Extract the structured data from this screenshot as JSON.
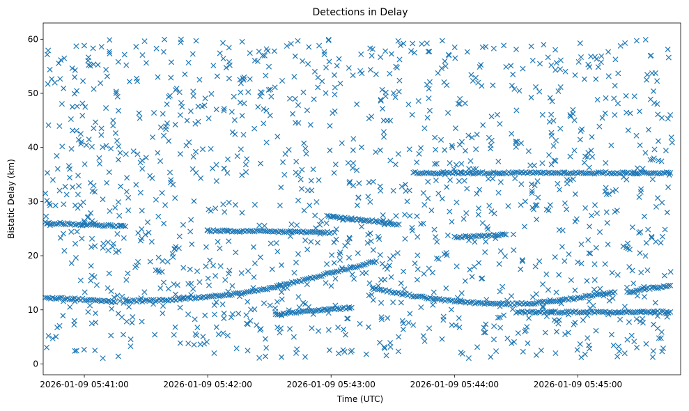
{
  "chart_data": {
    "type": "scatter",
    "title": "Detections in Delay",
    "xlabel": "Time (UTC)",
    "ylabel": "Bistatic Delay (km)",
    "x_ticks": [
      "2026-01-09 05:41:00",
      "2026-01-09 05:42:00",
      "2026-01-09 05:43:00",
      "2026-01-09 05:44:00",
      "2026-01-09 05:45:00"
    ],
    "y_ticks": [
      "0",
      "10",
      "20",
      "30",
      "40",
      "50",
      "60"
    ],
    "x_range": [
      "2026-01-09 05:40:40",
      "2026-01-09 05:45:50"
    ],
    "y_range": [
      -2,
      63
    ],
    "grid": false,
    "marker": "x",
    "color": "#1f77b4",
    "tracks": [
      {
        "points": [
          [
            "05:40:41",
            12.3
          ],
          [
            "05:40:50",
            12.1
          ],
          [
            "05:41:00",
            11.9
          ],
          [
            "05:41:10",
            11.6
          ],
          [
            "05:41:15",
            11.4
          ]
        ]
      },
      {
        "points": [
          [
            "05:41:20",
            11.6
          ],
          [
            "05:41:30",
            11.7
          ],
          [
            "05:41:40",
            11.8
          ],
          [
            "05:41:50",
            12.1
          ],
          [
            "05:42:00",
            12.4
          ],
          [
            "05:42:10",
            12.8
          ],
          [
            "05:42:20",
            13.2
          ],
          [
            "05:42:30",
            14.0
          ],
          [
            "05:42:40",
            14.9
          ],
          [
            "05:42:50",
            15.8
          ],
          [
            "05:43:00",
            16.9
          ],
          [
            "05:43:10",
            17.8
          ],
          [
            "05:43:22",
            19.0
          ]
        ]
      },
      {
        "points": [
          [
            "05:43:20",
            14.0
          ],
          [
            "05:43:30",
            13.3
          ],
          [
            "05:43:40",
            12.6
          ],
          [
            "05:43:50",
            12.0
          ],
          [
            "05:44:00",
            11.6
          ],
          [
            "05:44:10",
            11.3
          ],
          [
            "05:44:20",
            11.1
          ],
          [
            "05:44:30",
            11.1
          ],
          [
            "05:44:40",
            11.3
          ],
          [
            "05:44:50",
            11.7
          ],
          [
            "05:45:00",
            12.2
          ],
          [
            "05:45:10",
            12.8
          ],
          [
            "05:45:18",
            13.3
          ]
        ]
      },
      {
        "points": [
          [
            "05:45:25",
            13.2
          ],
          [
            "05:45:30",
            13.7
          ],
          [
            "05:45:35",
            14.0
          ],
          [
            "05:45:40",
            14.2
          ],
          [
            "05:45:45",
            14.5
          ]
        ]
      },
      {
        "points": [
          [
            "05:43:40",
            35.3
          ],
          [
            "05:44:00",
            35.3
          ],
          [
            "05:44:20",
            35.3
          ],
          [
            "05:44:40",
            35.3
          ],
          [
            "05:45:00",
            35.3
          ],
          [
            "05:45:20",
            35.3
          ],
          [
            "05:45:45",
            35.3
          ]
        ]
      },
      {
        "points": [
          [
            "05:40:41",
            26.1
          ],
          [
            "05:40:50",
            25.9
          ],
          [
            "05:41:00",
            25.8
          ],
          [
            "05:41:10",
            25.6
          ],
          [
            "05:41:20",
            25.4
          ]
        ]
      },
      {
        "points": [
          [
            "05:42:58",
            27.3
          ],
          [
            "05:43:05",
            27.0
          ],
          [
            "05:43:10",
            26.8
          ],
          [
            "05:43:15",
            26.6
          ],
          [
            "05:43:20",
            26.4
          ],
          [
            "05:43:25",
            26.2
          ],
          [
            "05:43:30",
            25.9
          ],
          [
            "05:43:33",
            25.8
          ]
        ]
      },
      {
        "points": [
          [
            "05:42:33",
            9.2
          ],
          [
            "05:42:45",
            9.6
          ],
          [
            "05:42:55",
            9.9
          ],
          [
            "05:43:00",
            10.1
          ],
          [
            "05:43:10",
            10.4
          ]
        ]
      },
      {
        "points": [
          [
            "05:44:30",
            9.6
          ],
          [
            "05:44:50",
            9.6
          ],
          [
            "05:45:10",
            9.6
          ],
          [
            "05:45:30",
            9.6
          ],
          [
            "05:45:45",
            9.6
          ]
        ]
      },
      {
        "points": [
          [
            "05:44:00",
            23.4
          ],
          [
            "05:44:10",
            23.6
          ],
          [
            "05:44:20",
            23.8
          ],
          [
            "05:44:25",
            23.9
          ]
        ]
      },
      {
        "points": [
          [
            "05:42:00",
            24.6
          ],
          [
            "05:42:20",
            24.5
          ],
          [
            "05:42:40",
            24.4
          ],
          [
            "05:43:00",
            24.3
          ]
        ]
      }
    ]
  }
}
